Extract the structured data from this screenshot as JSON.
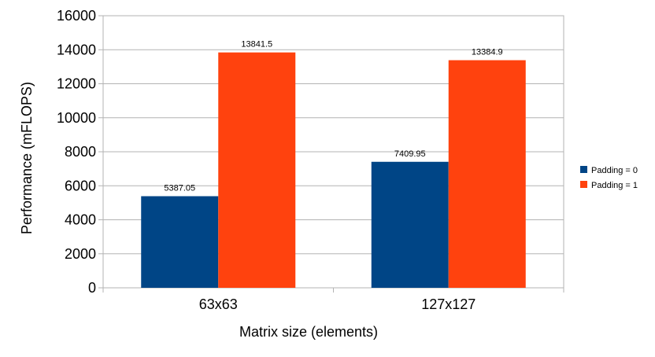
{
  "chart_data": {
    "type": "bar",
    "title": "",
    "xlabel": "Matrix size (elements)",
    "ylabel": "Performance (mFLOPS)",
    "categories": [
      "63x63",
      "127x127"
    ],
    "series": [
      {
        "name": "Padding = 0",
        "color": "#004586",
        "values": [
          5387.05,
          7409.95
        ],
        "labels": [
          "5387.05",
          "7409.95"
        ]
      },
      {
        "name": "Padding = 1",
        "color": "#ff420e",
        "values": [
          13841.5,
          13384.9
        ],
        "labels": [
          "13841.5",
          "13384.9"
        ]
      }
    ],
    "ylim": [
      0,
      16000
    ],
    "yticks": [
      0,
      2000,
      4000,
      6000,
      8000,
      10000,
      12000,
      14000,
      16000
    ],
    "grid": true,
    "legend_position": "right"
  }
}
